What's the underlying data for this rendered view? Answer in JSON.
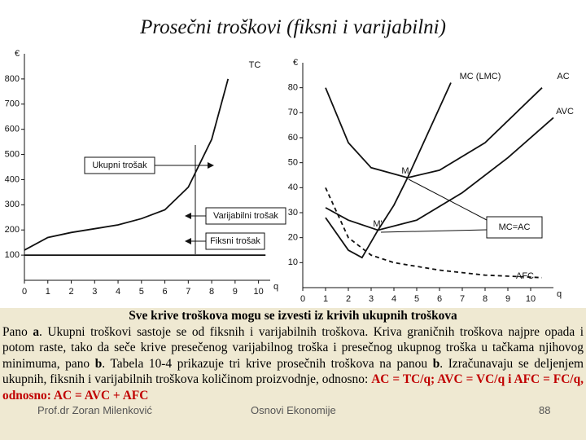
{
  "title": "Prosečni troškovi (fiksni i varijabilni)",
  "chart_data": [
    {
      "type": "line",
      "ylabel": "€",
      "xlabel": "q",
      "xlim": [
        0,
        10.5
      ],
      "ylim": [
        0,
        900
      ],
      "xticks": [
        0,
        1,
        2,
        3,
        4,
        5,
        6,
        7,
        8,
        9,
        10
      ],
      "yticks": [
        100,
        200,
        300,
        400,
        500,
        600,
        700,
        800
      ],
      "series": [
        {
          "name": "TC",
          "color": "#111111",
          "dashed": false,
          "x": [
            0,
            1,
            2,
            3,
            4,
            5,
            6,
            7,
            8,
            8.7
          ],
          "values": [
            120,
            170,
            190,
            205,
            220,
            245,
            280,
            370,
            560,
            800
          ]
        },
        {
          "color": "#111111",
          "dashed": false,
          "x": [
            0,
            10.3
          ],
          "values": [
            100,
            100
          ]
        }
      ],
      "annotations": [
        "Ukupni trošak",
        "Varijabilni trošak",
        "Fiksni trošak"
      ]
    },
    {
      "type": "line",
      "ylabel": "€",
      "xlabel": "q",
      "xlim": [
        0,
        11
      ],
      "ylim": [
        0,
        90
      ],
      "xticks": [
        0,
        1,
        2,
        3,
        4,
        5,
        6,
        7,
        8,
        9,
        10
      ],
      "yticks": [
        10,
        20,
        30,
        40,
        50,
        60,
        70,
        80
      ],
      "series": [
        {
          "name": "MC (LMC)",
          "color": "#111111",
          "dashed": false,
          "x": [
            1,
            2,
            2.6,
            3.3,
            4,
            4.6,
            5.5,
            6.5
          ],
          "values": [
            28,
            15,
            12,
            23,
            33,
            44,
            62,
            82
          ]
        },
        {
          "name": "AC",
          "color": "#111111",
          "dashed": false,
          "x": [
            1,
            2,
            3,
            4.6,
            6,
            8,
            10.5
          ],
          "values": [
            80,
            58,
            48,
            44,
            47,
            58,
            80
          ]
        },
        {
          "name": "AVC",
          "color": "#111111",
          "dashed": false,
          "x": [
            1,
            2,
            3.3,
            5,
            7,
            9,
            11
          ],
          "values": [
            32,
            27,
            23,
            27,
            38,
            52,
            68
          ]
        },
        {
          "name": "AFC",
          "color": "#111111",
          "dashed": true,
          "x": [
            1,
            2,
            3,
            4,
            6,
            8,
            10.5
          ],
          "values": [
            40,
            20,
            13,
            10,
            7,
            5,
            4
          ]
        }
      ],
      "annotations": [
        "M",
        "M'",
        "MC=AC"
      ]
    }
  ],
  "body": {
    "heading": "Sve krive troškova mogu se izvesti iz krivih ukupnih troškova",
    "parts": [
      "Pano ",
      "a",
      ". Ukupni troškovi sastoje se od fiksnih i varijabilnih troškova. Kriva graničnih troškova najpre opada i potom raste, tako da seče krive presečenog varijabilnog troška i presečnog ukupnog troška u tačkama njihovog minimuma, pano ",
      "b",
      ". Tabela 10-4 prikazuje tri krive prosečnih troškova na panou ",
      "b",
      ". Izračunavaju se deljenjem ukupnih, fiksnih i varijabilnih troškova količinom proizvodnje, odnosno: ",
      "AC = TC/q; AVC = VC/q i AFC = FC/q, odnosno: AC = AVC + AFC"
    ]
  },
  "footer": {
    "author": "Prof.dr Zoran Milenković",
    "course": "Osnovi Ekonomije",
    "page": "88"
  }
}
